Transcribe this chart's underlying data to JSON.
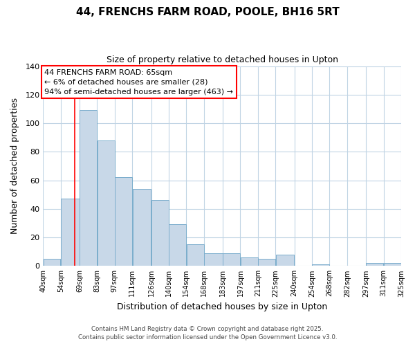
{
  "title_line1": "44, FRENCHS FARM ROAD, POOLE, BH16 5RT",
  "title_line2": "Size of property relative to detached houses in Upton",
  "xlabel": "Distribution of detached houses by size in Upton",
  "ylabel": "Number of detached properties",
  "bar_left_edges": [
    40,
    54,
    69,
    83,
    97,
    111,
    126,
    140,
    154,
    168,
    183,
    197,
    211,
    225,
    240,
    254,
    268,
    282,
    297,
    311
  ],
  "bar_widths": [
    14,
    15,
    14,
    14,
    14,
    15,
    14,
    14,
    14,
    15,
    14,
    14,
    14,
    15,
    14,
    14,
    14,
    15,
    14,
    14
  ],
  "bar_heights": [
    5,
    47,
    109,
    88,
    62,
    54,
    46,
    29,
    15,
    9,
    9,
    6,
    5,
    8,
    0,
    1,
    0,
    0,
    2,
    2
  ],
  "bar_color": "#c8d8e8",
  "bar_edge_color": "#7aadcc",
  "tick_labels": [
    "40sqm",
    "54sqm",
    "69sqm",
    "83sqm",
    "97sqm",
    "111sqm",
    "126sqm",
    "140sqm",
    "154sqm",
    "168sqm",
    "183sqm",
    "197sqm",
    "211sqm",
    "225sqm",
    "240sqm",
    "254sqm",
    "268sqm",
    "282sqm",
    "297sqm",
    "311sqm",
    "325sqm"
  ],
  "ylim": [
    0,
    140
  ],
  "yticks": [
    0,
    20,
    40,
    60,
    80,
    100,
    120,
    140
  ],
  "property_line_x": 65,
  "annotation_title": "44 FRENCHS FARM ROAD: 65sqm",
  "annotation_line1": "← 6% of detached houses are smaller (28)",
  "annotation_line2": "94% of semi-detached houses are larger (463) →",
  "footer_line1": "Contains HM Land Registry data © Crown copyright and database right 2025.",
  "footer_line2": "Contains public sector information licensed under the Open Government Licence v3.0.",
  "background_color": "#ffffff",
  "grid_color": "#c0d4e4"
}
